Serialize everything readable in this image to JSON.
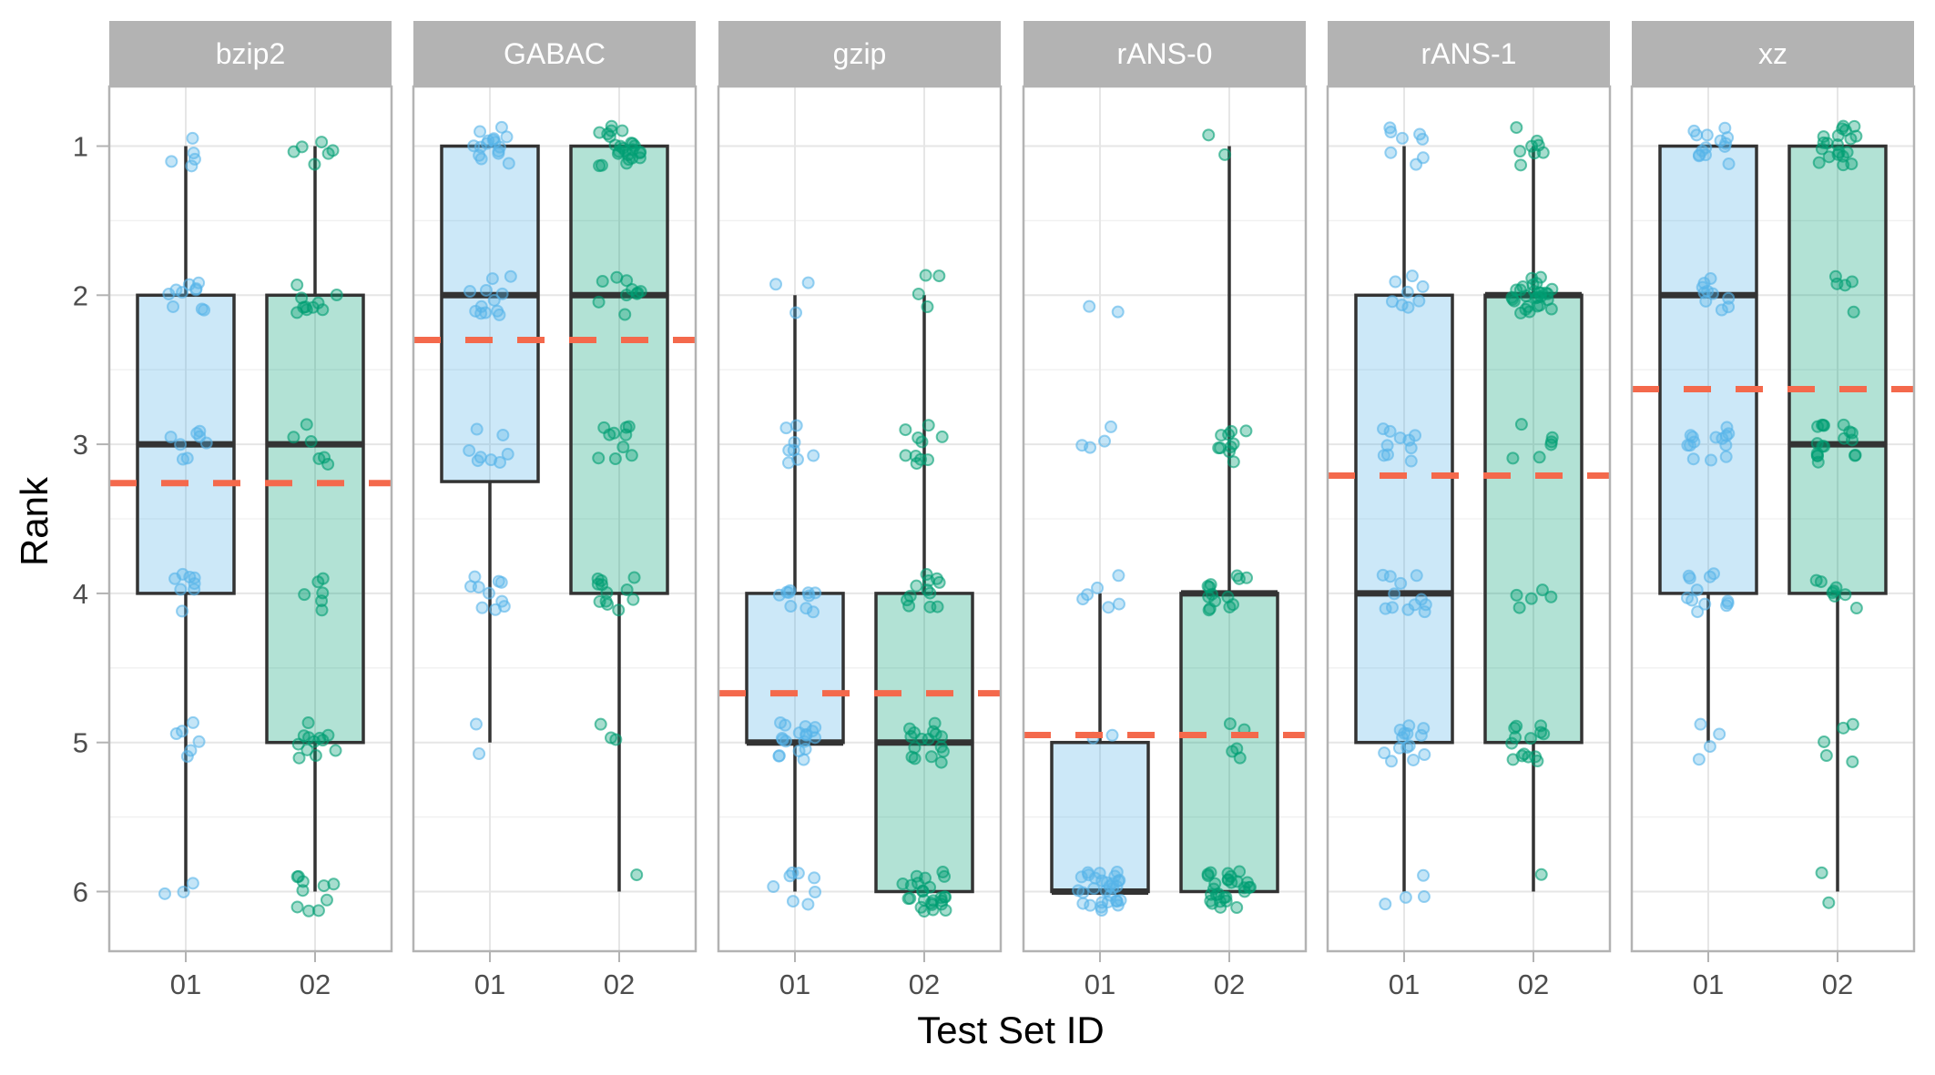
{
  "chart_data": {
    "type": "box",
    "xlabel": "Test Set ID",
    "ylabel": "Rank",
    "y_axis_reversed": true,
    "ylim": [
      0.6,
      6.4
    ],
    "yticks": [
      1,
      2,
      3,
      4,
      5,
      6
    ],
    "categories": [
      "01",
      "02"
    ],
    "grid": "on",
    "theme": "light",
    "colors": {
      "01": "#56B4E9",
      "02": "#009E73",
      "mean_line": "#F4694C",
      "strip": "#b3b3b3",
      "panel_border": "#b3b3b3",
      "grid": "#e6e6e6",
      "box_line": "#333333"
    },
    "panels": [
      {
        "name": "bzip2",
        "mean": 3.26,
        "boxes": [
          {
            "category": "01",
            "whisker_low": 1,
            "q1": 2,
            "median": 3,
            "q3": 4,
            "whisker_high": 6,
            "points": {
              "1": 5,
              "2": 10,
              "3": 8,
              "4": 8,
              "5": 6,
              "6": 3
            }
          },
          {
            "category": "02",
            "whisker_low": 1,
            "q1": 2,
            "median": 3,
            "q3": 5,
            "whisker_high": 6,
            "points": {
              "1": 6,
              "2": 10,
              "3": 6,
              "4": 6,
              "5": 12,
              "6": 10
            }
          }
        ]
      },
      {
        "name": "GABAC",
        "mean": 2.3,
        "boxes": [
          {
            "category": "01",
            "whisker_low": 1,
            "q1": 1,
            "median": 2,
            "q3": 3.25,
            "whisker_high": 5,
            "points": {
              "1": 16,
              "2": 12,
              "3": 8,
              "4": 10,
              "5": 2
            }
          },
          {
            "category": "02",
            "whisker_low": 1,
            "q1": 1,
            "median": 2,
            "q3": 4,
            "whisker_high": 6,
            "points": {
              "1": 25,
              "2": 10,
              "3": 10,
              "4": 12,
              "5": 3,
              "6": 1
            }
          }
        ]
      },
      {
        "name": "gzip",
        "mean": 4.67,
        "boxes": [
          {
            "category": "01",
            "whisker_low": 2,
            "q1": 4,
            "median": 5,
            "q3": 5,
            "whisker_high": 6,
            "points": {
              "2": 3,
              "3": 8,
              "4": 10,
              "5": 18,
              "6": 8
            }
          },
          {
            "category": "02",
            "whisker_low": 2,
            "q1": 4,
            "median": 5,
            "q3": 6,
            "whisker_high": 6,
            "points": {
              "2": 4,
              "3": 10,
              "4": 12,
              "5": 16,
              "6": 25
            }
          }
        ]
      },
      {
        "name": "rANS-0",
        "mean": 4.95,
        "boxes": [
          {
            "category": "01",
            "whisker_low": 4,
            "q1": 5,
            "median": 6,
            "q3": 6,
            "whisker_high": 6,
            "points": {
              "2": 2,
              "3": 4,
              "4": 6,
              "5": 2,
              "6": 30
            }
          },
          {
            "category": "02",
            "whisker_low": 1,
            "q1": 4,
            "median": 4,
            "q3": 6,
            "whisker_high": 6,
            "points": {
              "1": 2,
              "3": 10,
              "4": 14,
              "5": 5,
              "6": 28
            }
          }
        ]
      },
      {
        "name": "rANS-1",
        "mean": 3.21,
        "boxes": [
          {
            "category": "01",
            "whisker_low": 1,
            "q1": 2,
            "median": 4,
            "q3": 5,
            "whisker_high": 6,
            "points": {
              "1": 8,
              "2": 8,
              "3": 10,
              "4": 12,
              "5": 14,
              "6": 4
            }
          },
          {
            "category": "02",
            "whisker_low": 1,
            "q1": 2,
            "median": 2,
            "q3": 5,
            "whisker_high": 6,
            "points": {
              "1": 8,
              "2": 28,
              "3": 6,
              "4": 5,
              "5": 14,
              "6": 1
            }
          }
        ]
      },
      {
        "name": "xz",
        "mean": 2.63,
        "boxes": [
          {
            "category": "01",
            "whisker_low": 1,
            "q1": 1,
            "median": 2,
            "q3": 4,
            "whisker_high": 5,
            "points": {
              "1": 14,
              "2": 10,
              "3": 14,
              "4": 12,
              "5": 4
            }
          },
          {
            "category": "02",
            "whisker_low": 1,
            "q1": 1,
            "median": 3,
            "q3": 4,
            "whisker_high": 6,
            "points": {
              "1": 20,
              "2": 5,
              "3": 18,
              "4": 8,
              "5": 5,
              "6": 2
            }
          }
        ]
      }
    ]
  }
}
